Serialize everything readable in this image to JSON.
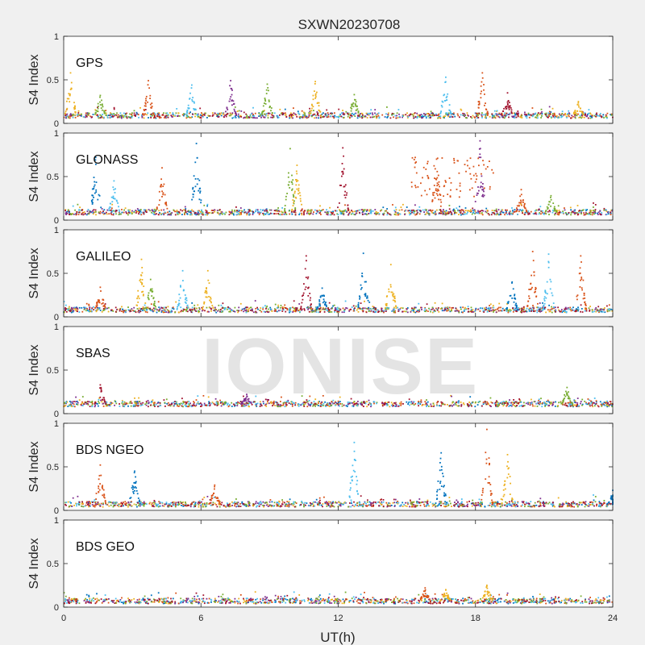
{
  "figure_title": "SXWN20230708",
  "watermark": "IONISE",
  "chart_data": {
    "type": "scatter",
    "title": "SXWN20230708",
    "xlabel": "UT(h)",
    "ylabel": "S4 Index",
    "xlim": [
      0,
      24
    ],
    "ylim": [
      0,
      1
    ],
    "xticks": [
      0,
      6,
      12,
      18,
      24
    ],
    "yticks": [
      0,
      0.5,
      1
    ],
    "grid": false,
    "series_colors": [
      "#0072BD",
      "#D95319",
      "#EDB120",
      "#7E2F8E",
      "#77AC30",
      "#4DBEEE",
      "#A2142F"
    ],
    "panels": [
      {
        "label": "GPS",
        "baseline": 0.09,
        "spikes": [
          {
            "t": 0.3,
            "peak": 0.58,
            "color": 2
          },
          {
            "t": 1.6,
            "peak": 0.32,
            "color": 4
          },
          {
            "t": 3.7,
            "peak": 0.49,
            "color": 1
          },
          {
            "t": 5.6,
            "peak": 0.44,
            "color": 5
          },
          {
            "t": 7.3,
            "peak": 0.49,
            "color": 3
          },
          {
            "t": 8.9,
            "peak": 0.45,
            "color": 4
          },
          {
            "t": 11.0,
            "peak": 0.48,
            "color": 2
          },
          {
            "t": 12.7,
            "peak": 0.33,
            "color": 4
          },
          {
            "t": 16.7,
            "peak": 0.53,
            "color": 5
          },
          {
            "t": 18.3,
            "peak": 0.58,
            "color": 1
          },
          {
            "t": 19.4,
            "peak": 0.35,
            "color": 6
          },
          {
            "t": 22.5,
            "peak": 0.25,
            "color": 2
          }
        ]
      },
      {
        "label": "GLONASS",
        "baseline": 0.09,
        "spikes": [
          {
            "t": 1.4,
            "peak": 0.72,
            "color": 0
          },
          {
            "t": 2.2,
            "peak": 0.45,
            "color": 5
          },
          {
            "t": 4.3,
            "peak": 0.6,
            "color": 1
          },
          {
            "t": 5.8,
            "peak": 0.88,
            "color": 0
          },
          {
            "t": 9.9,
            "peak": 0.82,
            "color": 4
          },
          {
            "t": 10.2,
            "peak": 0.63,
            "color": 2
          },
          {
            "t": 12.2,
            "peak": 0.83,
            "color": 6
          },
          {
            "t": 16.3,
            "peak": 0.7,
            "color": 1
          },
          {
            "t": 18.2,
            "peak": 0.91,
            "color": 3
          },
          {
            "t": 20.0,
            "peak": 0.35,
            "color": 1
          },
          {
            "t": 21.3,
            "peak": 0.28,
            "color": 4
          }
        ],
        "scatter_band": {
          "from": 15.2,
          "to": 18.8,
          "min": 0.25,
          "max": 0.72,
          "color": 1
        }
      },
      {
        "label": "GALILEO",
        "baseline": 0.08,
        "spikes": [
          {
            "t": 1.6,
            "peak": 0.34,
            "color": 1
          },
          {
            "t": 3.4,
            "peak": 0.66,
            "color": 2
          },
          {
            "t": 3.8,
            "peak": 0.43,
            "color": 4
          },
          {
            "t": 5.2,
            "peak": 0.53,
            "color": 5
          },
          {
            "t": 6.3,
            "peak": 0.53,
            "color": 2
          },
          {
            "t": 10.6,
            "peak": 0.7,
            "color": 6
          },
          {
            "t": 11.3,
            "peak": 0.33,
            "color": 0
          },
          {
            "t": 13.1,
            "peak": 0.73,
            "color": 0
          },
          {
            "t": 14.3,
            "peak": 0.6,
            "color": 2
          },
          {
            "t": 19.6,
            "peak": 0.4,
            "color": 0
          },
          {
            "t": 20.5,
            "peak": 0.75,
            "color": 1
          },
          {
            "t": 21.2,
            "peak": 0.72,
            "color": 5
          },
          {
            "t": 22.6,
            "peak": 0.7,
            "color": 1
          }
        ]
      },
      {
        "label": "SBAS",
        "baseline": 0.11,
        "spikes": [
          {
            "t": 1.6,
            "peak": 0.33,
            "color": 6
          },
          {
            "t": 8.0,
            "peak": 0.22,
            "color": 3
          },
          {
            "t": 22.0,
            "peak": 0.3,
            "color": 4
          }
        ]
      },
      {
        "label": "BDS NGEO",
        "baseline": 0.07,
        "spikes": [
          {
            "t": 1.6,
            "peak": 0.52,
            "color": 1
          },
          {
            "t": 3.1,
            "peak": 0.45,
            "color": 0
          },
          {
            "t": 6.6,
            "peak": 0.29,
            "color": 1
          },
          {
            "t": 12.7,
            "peak": 0.78,
            "color": 5
          },
          {
            "t": 16.5,
            "peak": 0.66,
            "color": 0
          },
          {
            "t": 18.5,
            "peak": 0.93,
            "color": 1
          },
          {
            "t": 19.4,
            "peak": 0.64,
            "color": 2
          },
          {
            "t": 24.0,
            "peak": 0.23,
            "color": 0
          }
        ]
      },
      {
        "label": "BDS GEO",
        "baseline": 0.07,
        "spikes": [
          {
            "t": 15.8,
            "peak": 0.22,
            "color": 1
          },
          {
            "t": 16.7,
            "peak": 0.2,
            "color": 2
          },
          {
            "t": 18.5,
            "peak": 0.25,
            "color": 2
          }
        ]
      }
    ]
  }
}
